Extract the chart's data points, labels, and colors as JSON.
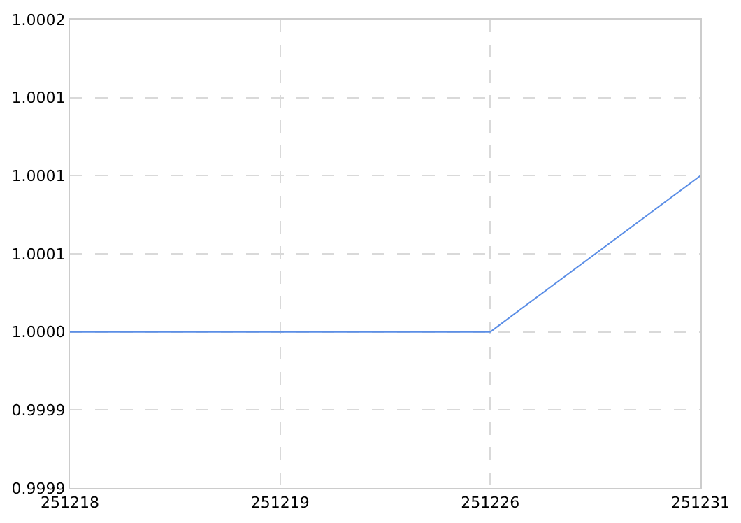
{
  "chart_data": {
    "type": "line",
    "categories": [
      "251218",
      "251219",
      "251226",
      "251231"
    ],
    "series": [
      {
        "color": "#5b8ee6",
        "values": [
          1.0,
          1.0,
          1.0,
          1.0001
        ]
      }
    ],
    "ylim": [
      0.9999,
      1.0002
    ],
    "yticks": [
      {
        "value": 0.9999,
        "label": "0.9999"
      },
      {
        "value": 0.99995,
        "label": "0.9999"
      },
      {
        "value": 1.0,
        "label": "1.0000"
      },
      {
        "value": 1.00005,
        "label": "1.0001"
      },
      {
        "value": 1.0001,
        "label": "1.0001"
      },
      {
        "value": 1.00015,
        "label": "1.0001"
      },
      {
        "value": 1.0002,
        "label": "1.0002"
      }
    ],
    "grid": true,
    "legend": false,
    "marker": "none",
    "line_style": "solid"
  }
}
